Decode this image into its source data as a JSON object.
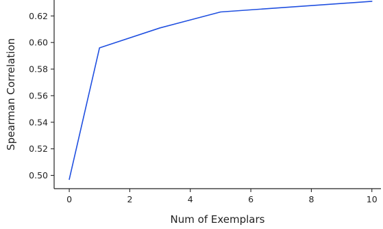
{
  "chart_data": {
    "type": "line",
    "xlabel": "Num of Exemplars",
    "ylabel": "Spearman Correlation",
    "xlim": [
      -0.5,
      10.3
    ],
    "ylim": [
      0.49,
      0.632
    ],
    "xticks": [
      0,
      2,
      4,
      6,
      8,
      10
    ],
    "xtick_labels": [
      "0",
      "2",
      "4",
      "6",
      "8",
      "10"
    ],
    "yticks": [
      0.5,
      0.52,
      0.54,
      0.56,
      0.58,
      0.6,
      0.62
    ],
    "ytick_labels": [
      "0.50",
      "0.52",
      "0.54",
      "0.56",
      "0.58",
      "0.60",
      "0.62"
    ],
    "grid": false,
    "series": [
      {
        "color": "#1f4fe0",
        "x": [
          0,
          1,
          3,
          5,
          10
        ],
        "y": [
          0.497,
          0.596,
          0.611,
          0.623,
          0.631
        ]
      }
    ]
  }
}
